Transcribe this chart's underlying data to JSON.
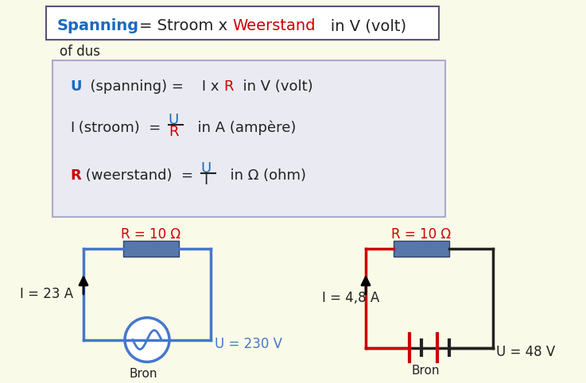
{
  "bg_color": "#FAFAE8",
  "title_box": {
    "text_parts": [
      {
        "text": "Spanning",
        "color": "#1a6abf",
        "bold": true
      },
      {
        "text": "= Stroom x ",
        "color": "#222222",
        "bold": false
      },
      {
        "text": "Weerstand",
        "color": "#cc0000",
        "bold": false
      },
      {
        "text": "   in V (volt)",
        "color": "#222222",
        "bold": false
      }
    ]
  },
  "of_dus": "of dus",
  "formula_box": {
    "bg": "#e8e8f0",
    "border": "#aaaacc",
    "lines": [
      {
        "type": "inline",
        "parts": [
          {
            "text": "U",
            "color": "#1a6abf",
            "bold": true
          },
          {
            "text": "  (spanning) =    I x ",
            "color": "#222222",
            "bold": false
          },
          {
            "text": "R",
            "color": "#cc0000",
            "bold": false
          },
          {
            "text": "  in V (volt)",
            "color": "#222222",
            "bold": false
          }
        ]
      },
      {
        "type": "fraction",
        "left_parts": [
          {
            "text": "I",
            "color": "#222222",
            "bold": false
          },
          {
            "text": " (stroom)  =",
            "color": "#222222",
            "bold": false
          }
        ],
        "numerator": {
          "text": "U",
          "color": "#1a6abf",
          "bold": false
        },
        "denominator": {
          "text": "R",
          "color": "#cc0000",
          "bold": false
        },
        "right": "  in A (ampère)"
      },
      {
        "type": "fraction",
        "left_parts": [
          {
            "text": "R",
            "color": "#cc0000",
            "bold": true
          },
          {
            "text": " (weerstand)  =",
            "color": "#222222",
            "bold": false
          }
        ],
        "numerator": {
          "text": "U",
          "color": "#1a6abf",
          "bold": false
        },
        "denominator": {
          "text": "I",
          "color": "#222222",
          "bold": false
        },
        "right": "  in Ω (ohm)"
      }
    ]
  },
  "circuit1": {
    "label_I": "I = 23 A",
    "label_R": "R = 10 Ω",
    "label_U": "U = 230 V",
    "label_bron": "Bron",
    "wire_color": "#4477cc",
    "resistor_color": "#5577aa"
  },
  "circuit2": {
    "label_I": "I = 4,8 A",
    "label_R": "R = 10 Ω",
    "label_U": "U = 48 V",
    "label_bron": "Bron",
    "wire_color_left": "#cc0000",
    "wire_color_right": "#222222",
    "resistor_color": "#5577aa"
  }
}
